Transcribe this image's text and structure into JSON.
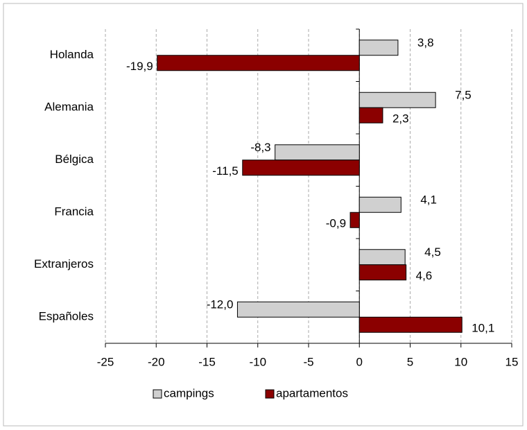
{
  "chart_data": {
    "type": "hbar",
    "categories": [
      "Holanda",
      "Alemania",
      "Bélgica",
      "Francia",
      "Extranjeros",
      "Españoles"
    ],
    "series": [
      {
        "name": "campings",
        "color": "#d0d0d0",
        "values": [
          3.8,
          7.5,
          -8.3,
          4.1,
          4.5,
          -12.0
        ],
        "value_labels": [
          "3,8",
          "7,5",
          "-8,3",
          "4,1",
          "4,5",
          "-12,0"
        ]
      },
      {
        "name": "apartamentos",
        "color": "#8b0000",
        "values": [
          -19.9,
          2.3,
          -11.5,
          -0.9,
          4.6,
          10.1
        ],
        "value_labels": [
          "-19,9",
          "2,3",
          "-11,5",
          "-0,9",
          "4,6",
          "10,1"
        ]
      }
    ],
    "xlim": [
      -25,
      15
    ],
    "xticks": [
      -25,
      -20,
      -15,
      -10,
      -5,
      0,
      5,
      10,
      15
    ],
    "grid": true,
    "legend": "bottom"
  }
}
